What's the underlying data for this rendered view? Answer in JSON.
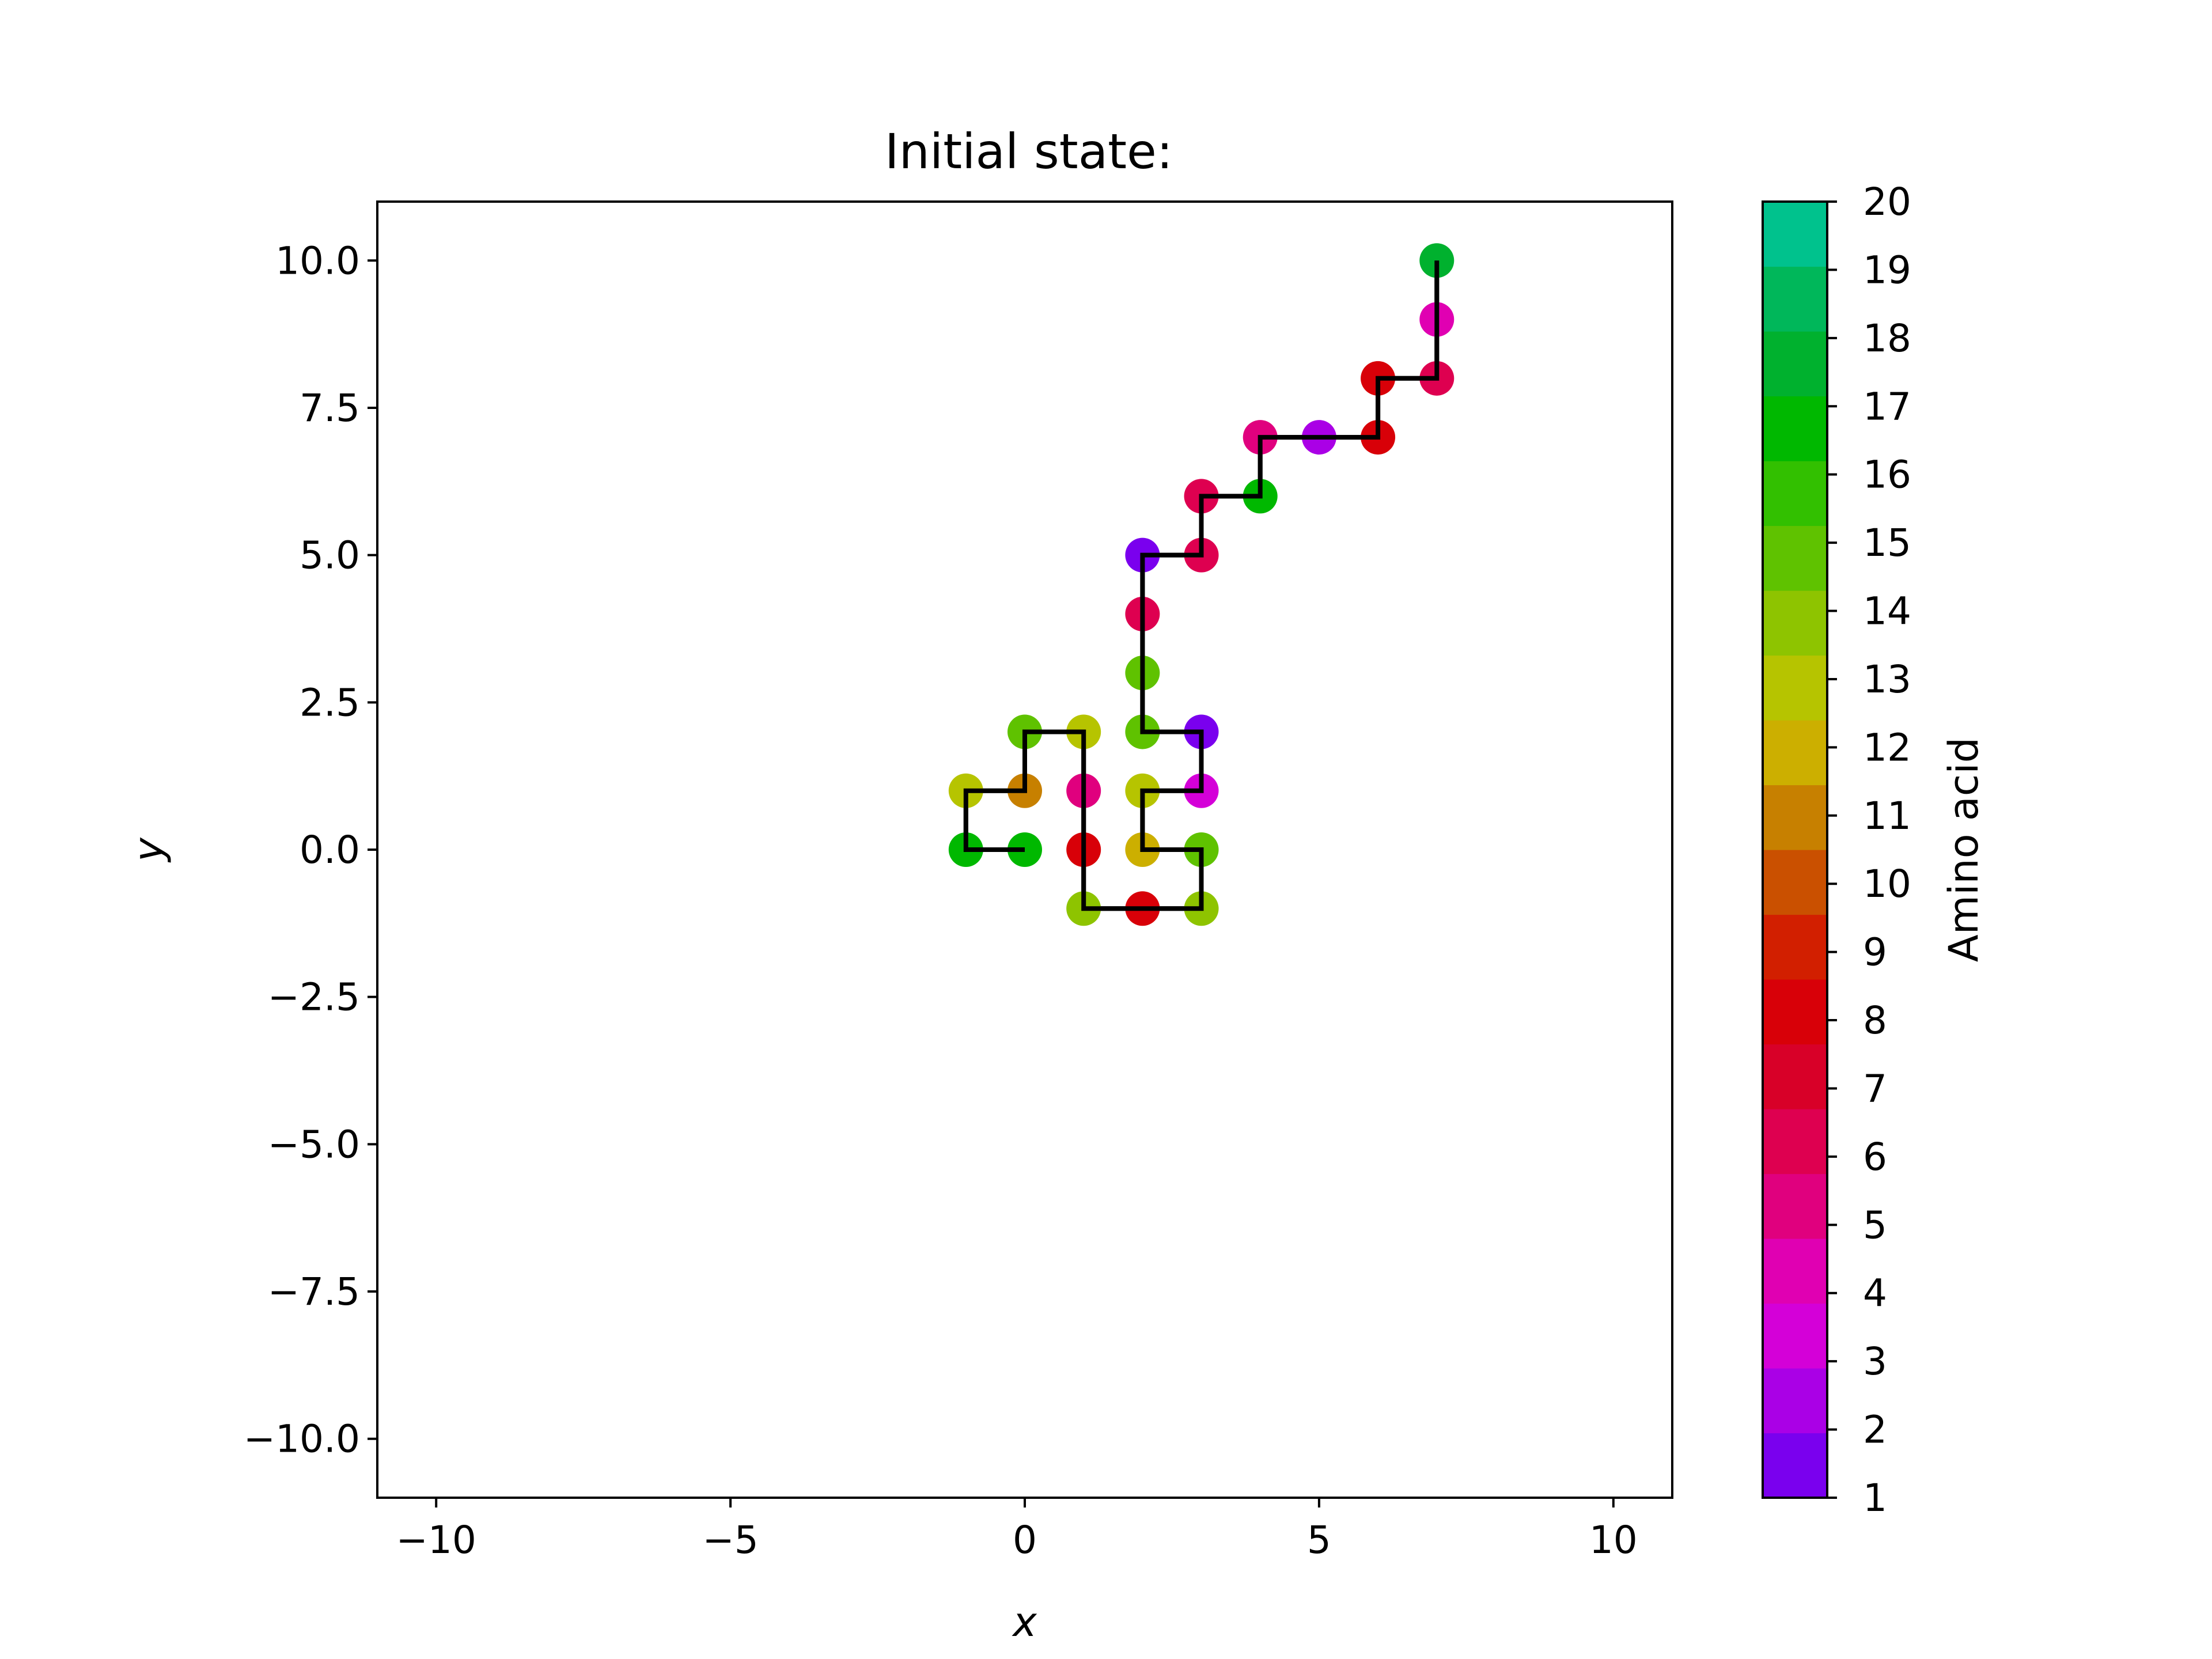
{
  "chart_data": {
    "type": "scatter",
    "title": "Initial state:",
    "xlabel": "x",
    "ylabel": "y",
    "xlim": [
      -11,
      11
    ],
    "ylim": [
      -11,
      11
    ],
    "xticks": [
      -10,
      -5,
      0,
      5,
      10
    ],
    "xtick_labels": [
      "−10",
      "−5",
      "0",
      "5",
      "10"
    ],
    "yticks": [
      -10,
      -7.5,
      -5,
      -2.5,
      0,
      2.5,
      5,
      7.5,
      10
    ],
    "ytick_labels": [
      "−10.0",
      "−7.5",
      "−5.0",
      "−2.5",
      "0.0",
      "2.5",
      "5.0",
      "7.5",
      "10.0"
    ],
    "grid": false,
    "line_color": "#000000",
    "path": [
      {
        "x": 0,
        "y": 0,
        "aa": 17
      },
      {
        "x": -1,
        "y": 0,
        "aa": 17
      },
      {
        "x": -1,
        "y": 1,
        "aa": 13
      },
      {
        "x": 0,
        "y": 1,
        "aa": 11
      },
      {
        "x": 0,
        "y": 2,
        "aa": 15
      },
      {
        "x": 1,
        "y": 2,
        "aa": 13
      },
      {
        "x": 1,
        "y": 1,
        "aa": 5
      },
      {
        "x": 1,
        "y": 0,
        "aa": 8
      },
      {
        "x": 1,
        "y": -1,
        "aa": 14
      },
      {
        "x": 2,
        "y": -1,
        "aa": 8
      },
      {
        "x": 3,
        "y": -1,
        "aa": 14
      },
      {
        "x": 3,
        "y": 0,
        "aa": 15
      },
      {
        "x": 2,
        "y": 0,
        "aa": 12
      },
      {
        "x": 2,
        "y": 1,
        "aa": 13
      },
      {
        "x": 3,
        "y": 1,
        "aa": 3
      },
      {
        "x": 3,
        "y": 2,
        "aa": 1
      },
      {
        "x": 2,
        "y": 2,
        "aa": 15
      },
      {
        "x": 2,
        "y": 3,
        "aa": 15
      },
      {
        "x": 2,
        "y": 4,
        "aa": 6
      },
      {
        "x": 2,
        "y": 5,
        "aa": 1
      },
      {
        "x": 3,
        "y": 5,
        "aa": 6
      },
      {
        "x": 3,
        "y": 6,
        "aa": 6
      },
      {
        "x": 4,
        "y": 6,
        "aa": 17
      },
      {
        "x": 4,
        "y": 7,
        "aa": 5
      },
      {
        "x": 5,
        "y": 7,
        "aa": 2
      },
      {
        "x": 6,
        "y": 7,
        "aa": 8
      },
      {
        "x": 6,
        "y": 8,
        "aa": 8
      },
      {
        "x": 7,
        "y": 8,
        "aa": 6
      },
      {
        "x": 7,
        "y": 9,
        "aa": 4
      },
      {
        "x": 7,
        "y": 10,
        "aa": 18
      }
    ],
    "colorbar": {
      "label": "Amino acid",
      "min": 1,
      "max": 20,
      "ticks": [
        "1",
        "2",
        "3",
        "4",
        "5",
        "6",
        "7",
        "8",
        "9",
        "10",
        "11",
        "12",
        "13",
        "14",
        "15",
        "16",
        "17",
        "18",
        "19",
        "20"
      ],
      "colors": [
        "#7a00ee",
        "#aa00e6",
        "#d400d8",
        "#e000b2",
        "#e0007e",
        "#de0050",
        "#d80028",
        "#d80008",
        "#d21f00",
        "#ca5000",
        "#c78000",
        "#ccaf00",
        "#b6c400",
        "#8ec400",
        "#5fc200",
        "#32c000",
        "#00b800",
        "#00b12e",
        "#00b75a",
        "#00c28d"
      ]
    }
  }
}
